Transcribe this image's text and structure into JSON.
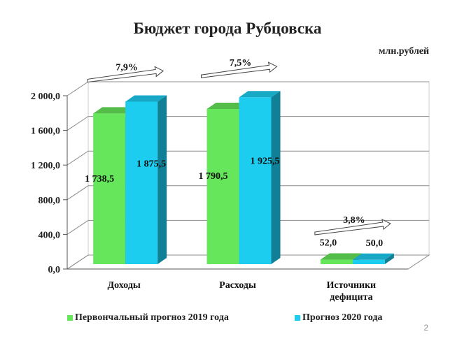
{
  "title": "Бюджет города Рубцовска",
  "unit": "млн.рублей",
  "page_number": "2",
  "colors": {
    "green": "#66e65a",
    "cyan": "#1ccdf0"
  },
  "chart_data": {
    "type": "bar",
    "title": "Бюджет города Рубцовска",
    "ylabel": "млн.рублей",
    "ylim": [
      0,
      2000
    ],
    "yticks": [
      "0,0",
      "400,0",
      "800,0",
      "1 200,0",
      "1 600,0",
      "2 000,0"
    ],
    "grid": true,
    "legend_position": "bottom",
    "categories": [
      "Доходы",
      "Расходы",
      "Источники дефицита"
    ],
    "series": [
      {
        "name": "Первончальный прогноз 2019 года",
        "values": [
          1738.5,
          1790.5,
          52.0
        ],
        "labels": [
          "1 738,5",
          "1 790,5",
          "52,0"
        ]
      },
      {
        "name": "Прогноз 2020 года",
        "values": [
          1875.5,
          1925.5,
          50.0
        ],
        "labels": [
          "1 875,5",
          "1 925,5",
          "50,0"
        ]
      }
    ],
    "annotations": [
      "7,9%",
      "7,5%",
      "3,8%"
    ]
  }
}
